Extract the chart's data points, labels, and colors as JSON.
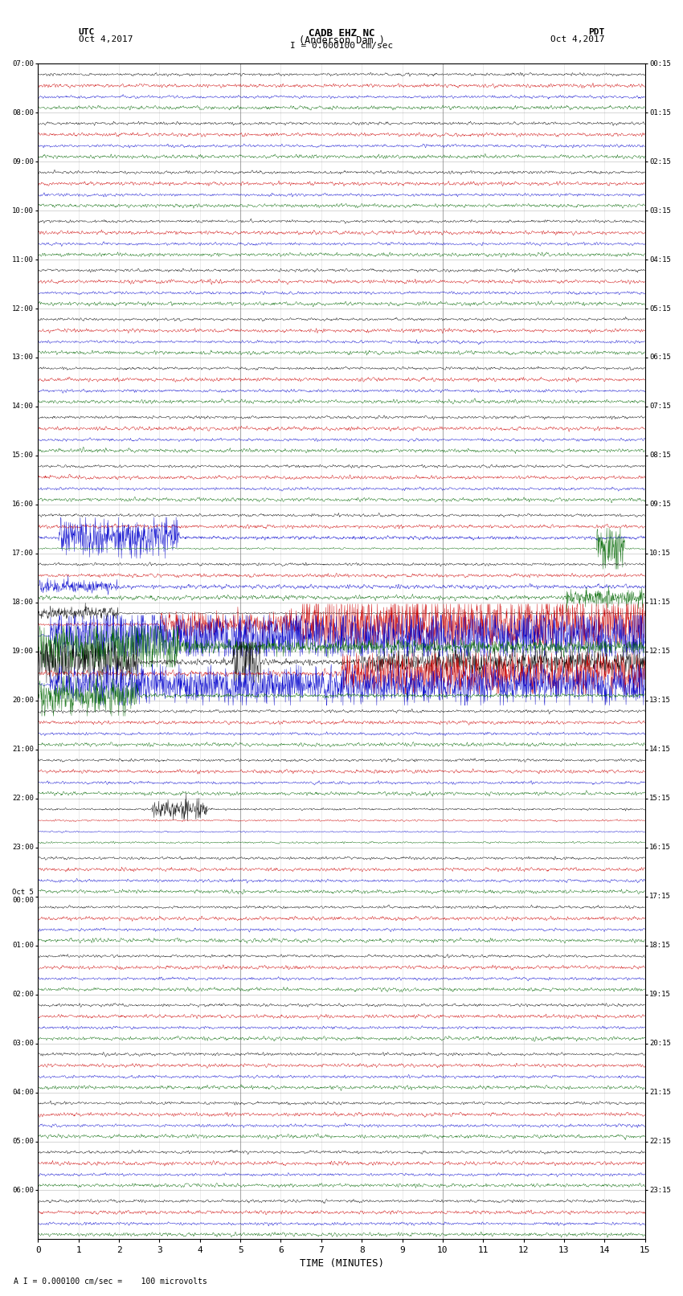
{
  "title_line1": "CADB EHZ NC",
  "title_line2": "(Anderson Dam )",
  "title_line3": "I = 0.000100 cm/sec",
  "label_left": "UTC",
  "date_left": "Oct 4,2017",
  "label_right": "PDT",
  "date_right": "Oct 4,2017",
  "xlabel": "TIME (MINUTES)",
  "footnote": "A I = 0.000100 cm/sec =    100 microvolts",
  "bg_color": "#ffffff",
  "grid_color_v_major": "#888888",
  "grid_color_v_minor": "#cccccc",
  "grid_color_h": "#888888",
  "trace_colors": [
    "#000000",
    "#cc0000",
    "#0000cc",
    "#006600"
  ],
  "num_rows": 24,
  "minutes_per_row": 15,
  "right_labels": [
    "00:15",
    "01:15",
    "02:15",
    "03:15",
    "04:15",
    "05:15",
    "06:15",
    "07:15",
    "08:15",
    "09:15",
    "10:15",
    "11:15",
    "12:15",
    "13:15",
    "14:15",
    "15:15",
    "16:15",
    "17:15",
    "18:15",
    "19:15",
    "20:15",
    "21:15",
    "22:15",
    "23:15"
  ],
  "left_labels": [
    "07:00",
    "08:00",
    "09:00",
    "10:00",
    "11:00",
    "12:00",
    "13:00",
    "14:00",
    "15:00",
    "16:00",
    "17:00",
    "18:00",
    "19:00",
    "20:00",
    "21:00",
    "22:00",
    "23:00",
    "Oct 5\n00:00",
    "01:00",
    "02:00",
    "03:00",
    "04:00",
    "05:00",
    "06:00"
  ]
}
